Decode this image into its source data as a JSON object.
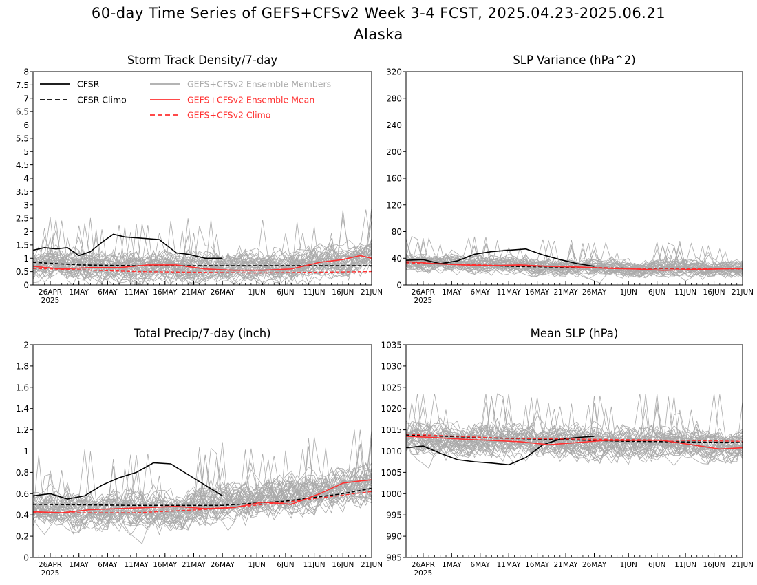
{
  "title": {
    "line1": "60-day Time Series of GEFS+CFSv2 Week 3-4 FCST, 2025.04.23-2025.06.21",
    "line2": "Alaska"
  },
  "colors": {
    "cfsr": "#000000",
    "members": "#aaaaaa",
    "ensemble_mean": "#ff3030",
    "gefs_climo": "#ff3030"
  },
  "x_axis": {
    "start_date": "2025-04-23",
    "end_date": "2025-06-21",
    "ticks": [
      {
        "date": "2025-04-26",
        "label": "26APR",
        "sublabel": "2025"
      },
      {
        "date": "2025-05-01",
        "label": "1MAY"
      },
      {
        "date": "2025-05-06",
        "label": "6MAY"
      },
      {
        "date": "2025-05-11",
        "label": "11MAY"
      },
      {
        "date": "2025-05-16",
        "label": "16MAY"
      },
      {
        "date": "2025-05-21",
        "label": "21MAY"
      },
      {
        "date": "2025-05-26",
        "label": "26MAY"
      },
      {
        "date": "2025-06-01",
        "label": "1JUN"
      },
      {
        "date": "2025-06-06",
        "label": "6JUN"
      },
      {
        "date": "2025-06-11",
        "label": "11JUN"
      },
      {
        "date": "2025-06-16",
        "label": "16JUN"
      },
      {
        "date": "2025-06-21",
        "label": "21JUN"
      }
    ]
  },
  "legend": {
    "items": [
      {
        "label": "CFSR",
        "style": "solid",
        "color": "#000000"
      },
      {
        "label": "CFSR Climo",
        "style": "dashed",
        "color": "#000000"
      },
      {
        "label": "GEFS+CFSv2 Ensemble Members",
        "style": "solid",
        "color": "#aaaaaa"
      },
      {
        "label": "GEFS+CFSv2 Ensemble Mean",
        "style": "solid",
        "color": "#ff3030"
      },
      {
        "label": "GEFS+CFSv2 Climo",
        "style": "dashed",
        "color": "#ff3030"
      }
    ]
  },
  "chart_data": [
    {
      "type": "line",
      "title": "Storm Track Density/7-day",
      "ylim": [
        0,
        8
      ],
      "yticks": [
        "0",
        "0.5",
        "1",
        "1.5",
        "2",
        "2.5",
        "3",
        "3.5",
        "4",
        "4.5",
        "5",
        "5.5",
        "6",
        "6.5",
        "7",
        "7.5",
        "8"
      ],
      "members": {
        "baseline": [
          [
            0,
            0.7
          ],
          [
            30,
            0.65
          ],
          [
            45,
            0.7
          ],
          [
            59,
            1.1
          ]
        ],
        "spread": 0.45,
        "max": 4.3,
        "count": 40
      },
      "series": [
        {
          "name": "CFSR",
          "dates": [
            "2025-04-23",
            "2025-04-25",
            "2025-04-27",
            "2025-04-29",
            "2025-05-01",
            "2025-05-03",
            "2025-05-05",
            "2025-05-07",
            "2025-05-09",
            "2025-05-12",
            "2025-05-15",
            "2025-05-18",
            "2025-05-20",
            "2025-05-23",
            "2025-05-26"
          ],
          "values": [
            1.3,
            1.4,
            1.35,
            1.4,
            1.1,
            1.25,
            1.6,
            1.9,
            1.8,
            1.75,
            1.7,
            1.2,
            1.15,
            1.0,
            1.0
          ]
        },
        {
          "name": "CFSR Climo",
          "dates": [
            "2025-04-23",
            "2025-05-01",
            "2025-05-11",
            "2025-05-21",
            "2025-06-01",
            "2025-06-11",
            "2025-06-21"
          ],
          "values": [
            0.85,
            0.75,
            0.72,
            0.72,
            0.72,
            0.72,
            0.72
          ]
        },
        {
          "name": "GEFS+CFSv2 Ensemble Mean",
          "dates": [
            "2025-04-23",
            "2025-04-28",
            "2025-05-03",
            "2025-05-08",
            "2025-05-13",
            "2025-05-18",
            "2025-05-23",
            "2025-05-28",
            "2025-06-02",
            "2025-06-07",
            "2025-06-12",
            "2025-06-16",
            "2025-06-19",
            "2025-06-21"
          ],
          "values": [
            0.7,
            0.6,
            0.65,
            0.65,
            0.75,
            0.75,
            0.6,
            0.55,
            0.55,
            0.6,
            0.85,
            0.95,
            1.1,
            1.0
          ]
        },
        {
          "name": "GEFS+CFSv2 Climo",
          "dates": [
            "2025-04-23",
            "2025-05-11",
            "2025-06-01",
            "2025-06-21"
          ],
          "values": [
            0.62,
            0.5,
            0.45,
            0.5
          ]
        }
      ]
    },
    {
      "type": "line",
      "title": "SLP Variance (hPa^2)",
      "ylim": [
        0,
        320
      ],
      "yticks": [
        "0",
        "40",
        "80",
        "120",
        "160",
        "200",
        "240",
        "280",
        "320"
      ],
      "members": {
        "baseline": [
          [
            0,
            35
          ],
          [
            30,
            26
          ],
          [
            59,
            24
          ]
        ],
        "spread": 10,
        "max": 90,
        "count": 40
      },
      "series": [
        {
          "name": "CFSR",
          "dates": [
            "2025-04-23",
            "2025-04-26",
            "2025-04-29",
            "2025-05-02",
            "2025-05-05",
            "2025-05-08",
            "2025-05-11",
            "2025-05-14",
            "2025-05-17",
            "2025-05-20",
            "2025-05-23",
            "2025-05-26"
          ],
          "values": [
            37,
            38,
            32,
            36,
            46,
            50,
            52,
            54,
            45,
            38,
            32,
            28
          ]
        },
        {
          "name": "CFSR Climo",
          "dates": [
            "2025-04-23",
            "2025-05-11",
            "2025-06-01",
            "2025-06-21"
          ],
          "values": [
            34,
            28,
            25,
            24
          ]
        },
        {
          "name": "GEFS+CFSv2 Ensemble Mean",
          "dates": [
            "2025-04-23",
            "2025-04-28",
            "2025-05-03",
            "2025-05-08",
            "2025-05-13",
            "2025-05-18",
            "2025-05-23",
            "2025-05-28",
            "2025-06-02",
            "2025-06-07",
            "2025-06-12",
            "2025-06-17",
            "2025-06-21"
          ],
          "values": [
            35,
            32,
            30,
            29,
            30,
            28,
            27,
            25,
            24,
            22,
            23,
            24,
            25
          ]
        },
        {
          "name": "GEFS+CFSv2 Climo",
          "dates": [
            "2025-04-23",
            "2025-05-11",
            "2025-06-01",
            "2025-06-21"
          ],
          "values": [
            33,
            29,
            25,
            24
          ]
        }
      ]
    },
    {
      "type": "line",
      "title": "Total Precip/7-day (inch)",
      "ylim": [
        0,
        2
      ],
      "yticks": [
        "0",
        "0.2",
        "0.4",
        "0.6",
        "0.8",
        "1",
        "1.2",
        "1.4",
        "1.6",
        "1.8",
        "2"
      ],
      "members": {
        "baseline": [
          [
            0,
            0.45
          ],
          [
            25,
            0.45
          ],
          [
            59,
            0.7
          ]
        ],
        "spread": 0.14,
        "max": 1.2,
        "count": 40
      },
      "series": [
        {
          "name": "CFSR",
          "dates": [
            "2025-04-23",
            "2025-04-26",
            "2025-04-29",
            "2025-05-02",
            "2025-05-05",
            "2025-05-08",
            "2025-05-11",
            "2025-05-14",
            "2025-05-17",
            "2025-05-20",
            "2025-05-23",
            "2025-05-26"
          ],
          "values": [
            0.58,
            0.6,
            0.55,
            0.58,
            0.68,
            0.75,
            0.8,
            0.89,
            0.88,
            0.78,
            0.68,
            0.58
          ]
        },
        {
          "name": "CFSR Climo",
          "dates": [
            "2025-04-23",
            "2025-05-11",
            "2025-05-26",
            "2025-06-06",
            "2025-06-16",
            "2025-06-21"
          ],
          "values": [
            0.5,
            0.49,
            0.49,
            0.53,
            0.6,
            0.65
          ]
        },
        {
          "name": "GEFS+CFSv2 Ensemble Mean",
          "dates": [
            "2025-04-23",
            "2025-04-28",
            "2025-05-03",
            "2025-05-08",
            "2025-05-13",
            "2025-05-18",
            "2025-05-23",
            "2025-05-28",
            "2025-06-02",
            "2025-06-07",
            "2025-06-12",
            "2025-06-16",
            "2025-06-19",
            "2025-06-21"
          ],
          "values": [
            0.43,
            0.42,
            0.45,
            0.46,
            0.47,
            0.48,
            0.46,
            0.47,
            0.52,
            0.5,
            0.6,
            0.7,
            0.72,
            0.73
          ]
        },
        {
          "name": "GEFS+CFSv2 Climo",
          "dates": [
            "2025-04-23",
            "2025-05-11",
            "2025-05-26",
            "2025-06-06",
            "2025-06-21"
          ],
          "values": [
            0.42,
            0.42,
            0.46,
            0.52,
            0.62
          ]
        }
      ]
    },
    {
      "type": "line",
      "title": "Mean SLP (hPa)",
      "ylim": [
        985,
        1035
      ],
      "yticks": [
        "985",
        "990",
        "995",
        "1000",
        "1005",
        "1010",
        "1015",
        "1020",
        "1025",
        "1030",
        "1035"
      ],
      "members": {
        "baseline": [
          [
            0,
            1013
          ],
          [
            59,
            1011.5
          ]
        ],
        "spread": 3,
        "max": 1023.5,
        "count": 40
      },
      "series": [
        {
          "name": "CFSR",
          "dates": [
            "2025-04-23",
            "2025-04-26",
            "2025-04-29",
            "2025-05-02",
            "2025-05-05",
            "2025-05-08",
            "2025-05-11",
            "2025-05-14",
            "2025-05-17",
            "2025-05-20",
            "2025-05-23",
            "2025-05-26"
          ],
          "values": [
            1010.8,
            1011.2,
            1009.5,
            1008,
            1007.5,
            1007.2,
            1006.8,
            1008.5,
            1011.5,
            1012.8,
            1013.2,
            1013.5
          ]
        },
        {
          "name": "CFSR Climo",
          "dates": [
            "2025-04-23",
            "2025-05-11",
            "2025-06-01",
            "2025-06-21"
          ],
          "values": [
            1013.8,
            1013,
            1012.3,
            1012
          ]
        },
        {
          "name": "GEFS+CFSv2 Ensemble Mean",
          "dates": [
            "2025-04-23",
            "2025-04-28",
            "2025-05-03",
            "2025-05-08",
            "2025-05-13",
            "2025-05-18",
            "2025-05-23",
            "2025-05-28",
            "2025-06-02",
            "2025-06-07",
            "2025-06-12",
            "2025-06-17",
            "2025-06-21"
          ],
          "values": [
            1013.5,
            1013.2,
            1012.8,
            1012.5,
            1012.2,
            1011.5,
            1012,
            1012.5,
            1012.5,
            1012.5,
            1011.5,
            1010.5,
            1010.8
          ]
        },
        {
          "name": "GEFS+CFSv2 Climo",
          "dates": [
            "2025-04-23",
            "2025-05-11",
            "2025-06-01",
            "2025-06-21"
          ],
          "values": [
            1014,
            1013,
            1012.7,
            1012.3
          ]
        }
      ]
    }
  ]
}
